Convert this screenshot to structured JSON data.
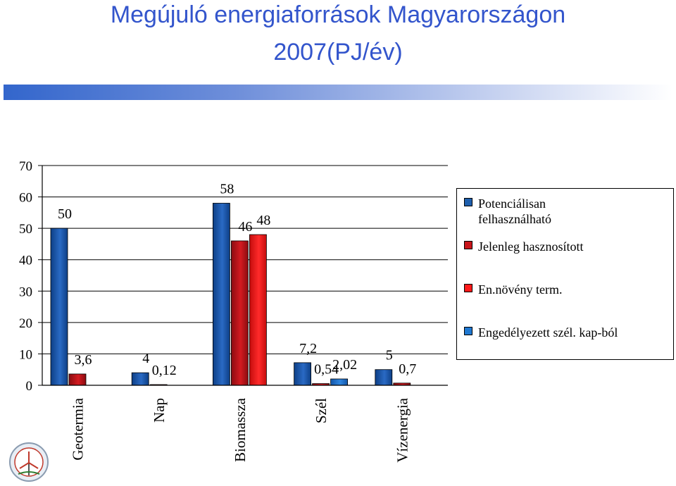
{
  "title_line1": "Megújuló energiaforrások Magyarországon",
  "title_line2": "2007(PJ/év)",
  "chart_data": {
    "type": "bar",
    "categories": [
      "Geotermia",
      "Nap",
      "Biomassza",
      "Szél",
      "Vízenergia"
    ],
    "series": [
      {
        "name": "Potenciálisan felhasználható",
        "color": "#1f5fad",
        "values": [
          50,
          4,
          58,
          7.2,
          5
        ]
      },
      {
        "name": "Jelenleg hasznosított",
        "color": "#c8151b",
        "values": [
          3.6,
          0.12,
          46,
          0.54,
          0.7
        ]
      },
      {
        "name": "En.növény term.",
        "color": "#ff1a1a",
        "values": [
          null,
          null,
          48,
          null,
          null
        ]
      },
      {
        "name": "Engedélyezett szél. kap-ból",
        "color": "#1f78d1",
        "values": [
          null,
          null,
          null,
          2.02,
          null
        ]
      }
    ],
    "value_labels": [
      [
        "50",
        "3,6"
      ],
      [
        "4",
        "0,12"
      ],
      [
        "58",
        "46",
        "48"
      ],
      [
        "7,2",
        "0,54",
        "2,02"
      ],
      [
        "5",
        "0,7"
      ]
    ],
    "yticks": [
      "0",
      "10",
      "20",
      "30",
      "40",
      "50",
      "60",
      "70"
    ],
    "ylim": [
      0,
      70
    ],
    "grid": true,
    "legend": "right"
  },
  "legend": {
    "items": [
      {
        "label_line1": "Potenciálisan",
        "label_line2": "felhasználható",
        "color": "#1f5fad"
      },
      {
        "label_line1": "Jelenleg hasznosított",
        "label_line2": "",
        "color": "#c8151b"
      },
      {
        "label_line1": "En.növény term.",
        "label_line2": "",
        "color": "#ff1a1a"
      },
      {
        "label_line1": "Engedélyezett szél. kap-ból",
        "label_line2": "",
        "color": "#1f78d1"
      }
    ]
  }
}
